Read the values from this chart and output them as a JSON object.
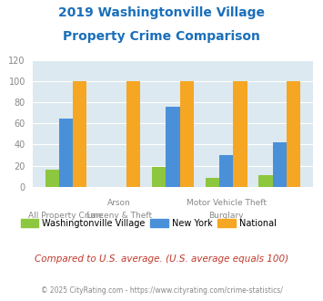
{
  "title_line1": "2019 Washingtonville Village",
  "title_line2": "Property Crime Comparison",
  "village_values": [
    16,
    0,
    19,
    8,
    11
  ],
  "ny_values": [
    65,
    0,
    76,
    30,
    42
  ],
  "national_values": [
    100,
    100,
    100,
    100,
    100
  ],
  "village_color": "#8dc63f",
  "ny_color": "#4a90d9",
  "national_color": "#f5a623",
  "bg_color": "#dce9f0",
  "ylim": [
    0,
    120
  ],
  "yticks": [
    0,
    20,
    40,
    60,
    80,
    100,
    120
  ],
  "title_color": "#1a6fba",
  "tick_color": "#888888",
  "legend_labels": [
    "Washingtonville Village",
    "New York",
    "National"
  ],
  "xtick_top": [
    "",
    "Arson",
    "",
    "Motor Vehicle Theft",
    ""
  ],
  "xtick_bot": [
    "All Property Crime",
    "Larceny & Theft",
    "",
    "Burglary",
    ""
  ],
  "note_text": "Compared to U.S. average. (U.S. average equals 100)",
  "footer_text": "© 2025 CityRating.com - https://www.cityrating.com/crime-statistics/",
  "note_color": "#c0392b",
  "footer_color": "#888888"
}
